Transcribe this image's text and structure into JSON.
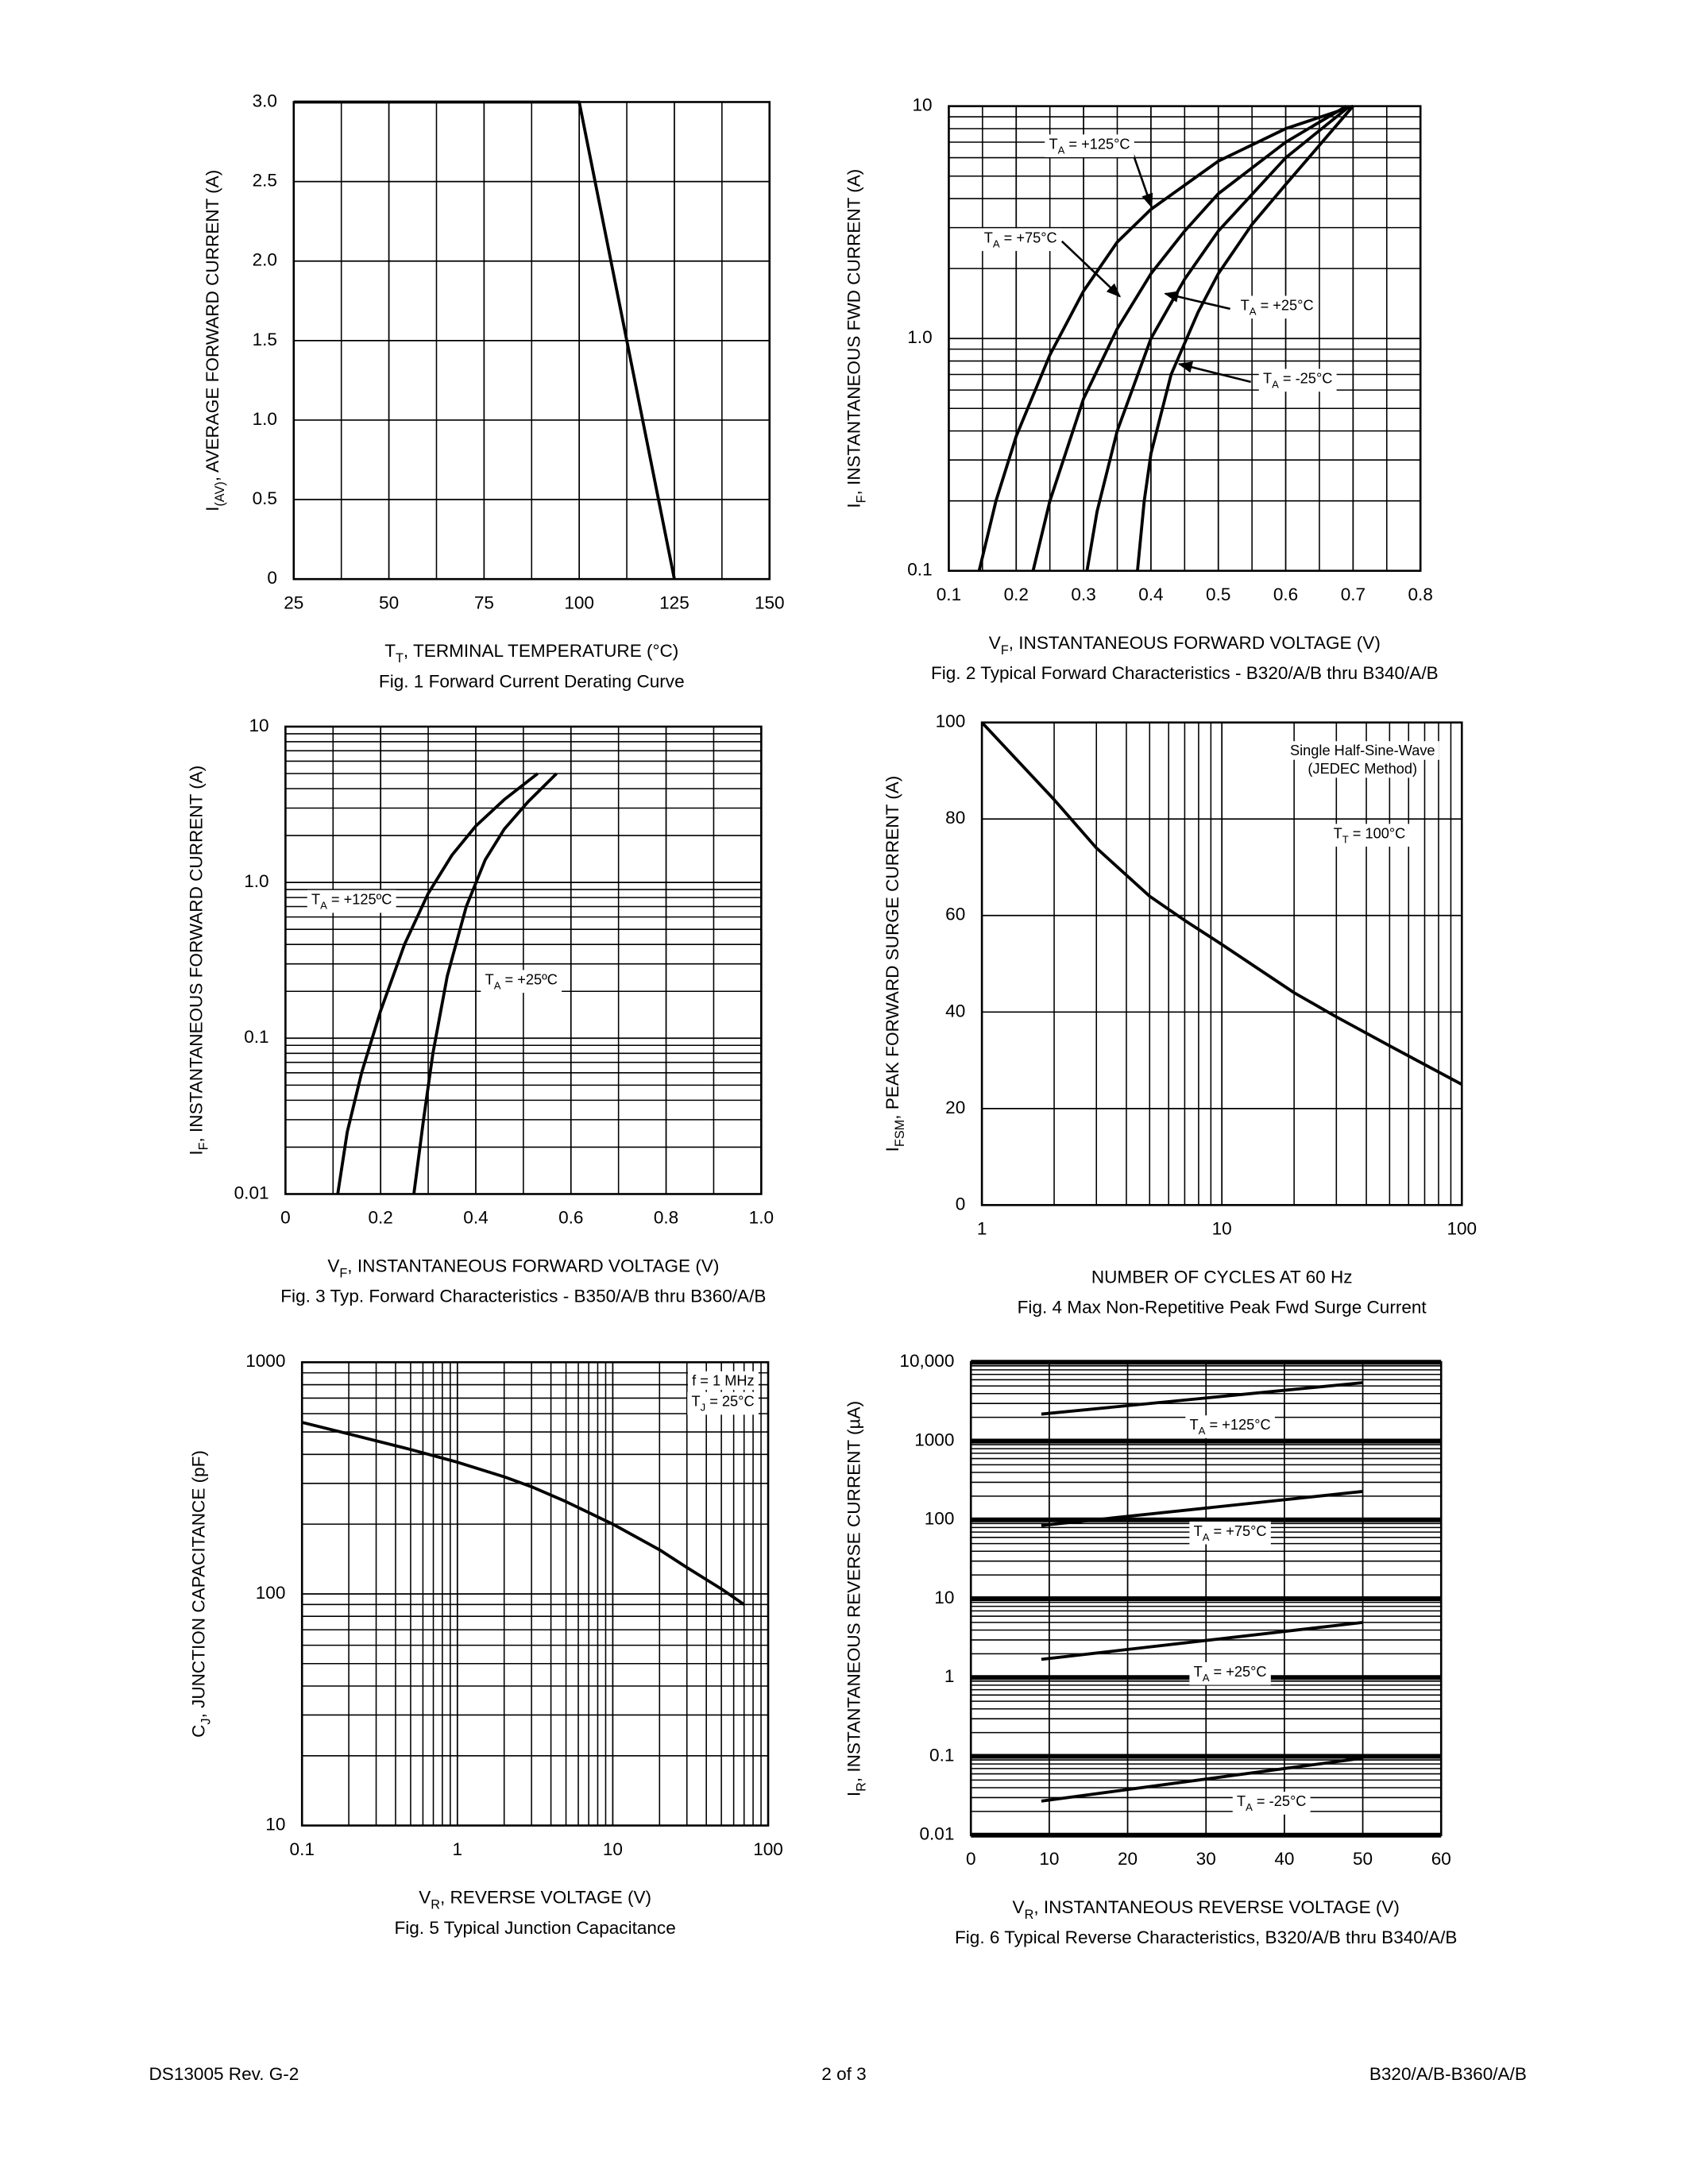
{
  "chart_data": [
    {
      "type": "line",
      "title": "Fig. 1  Forward Current Derating Curve",
      "xlabel": [
        "T",
        "T",
        ",  TERMINAL TEMPERATURE (°C)"
      ],
      "ylabel": [
        "I",
        "(AV)",
        ", AVERAGE FORWARD CURRENT (A)"
      ],
      "xlim": [
        25,
        150
      ],
      "ylim": [
        0,
        3
      ],
      "xlog": false,
      "ylog": false,
      "xticks": [
        25,
        50,
        75,
        100,
        125,
        150
      ],
      "yticks": [
        0,
        0.5,
        {
          "value": 1,
          "label": "1.0"
        },
        1.5,
        {
          "value": 2,
          "label": "2.0"
        },
        2.5,
        {
          "value": 3,
          "label": "3.0"
        }
      ],
      "xminor": [
        37.5,
        62.5,
        87.5,
        112.5,
        137.5
      ],
      "series": [
        {
          "color": "#000000",
          "x": [
            25,
            100,
            125
          ],
          "values": [
            3,
            3,
            0
          ]
        }
      ]
    },
    {
      "type": "line",
      "title": "Fig. 2  Typical Forward Characteristics - B320/A/B thru B340/A/B",
      "xlabel": [
        "V",
        "F",
        ", INSTANTANEOUS FORWARD VOLTAGE (V)"
      ],
      "ylabel": [
        "I",
        "F",
        ", INSTANTANEOUS FWD CURRENT (A)"
      ],
      "xlim": [
        0.1,
        0.8
      ],
      "ylim": [
        0.1,
        10
      ],
      "xlog": false,
      "ylog": true,
      "xticks": [
        0.1,
        0.2,
        0.3,
        0.4,
        0.5,
        0.6,
        0.7,
        0.8
      ],
      "yticks": [
        0.1,
        {
          "value": 1,
          "label": "1.0"
        },
        10
      ],
      "xminor": [
        0.15,
        0.25,
        0.35,
        0.45,
        0.55,
        0.65,
        0.75
      ],
      "series": [
        {
          "name": [
            "T",
            "A",
            " = +125°C"
          ],
          "color": "#000000",
          "x": [
            0.145,
            0.17,
            0.2,
            0.25,
            0.3,
            0.35,
            0.4,
            0.5,
            0.6,
            0.7
          ],
          "values": [
            0.1,
            0.2,
            0.38,
            0.85,
            1.6,
            2.6,
            3.6,
            5.8,
            8,
            10
          ]
        },
        {
          "name": [
            "T",
            "A",
            " = +75°C"
          ],
          "color": "#000000",
          "x": [
            0.225,
            0.25,
            0.3,
            0.35,
            0.4,
            0.45,
            0.5,
            0.6,
            0.69
          ],
          "values": [
            0.1,
            0.2,
            0.55,
            1.1,
            1.9,
            2.9,
            4.2,
            7,
            10
          ]
        },
        {
          "name": [
            "T",
            "A",
            " = +25°C"
          ],
          "color": "#000000",
          "x": [
            0.305,
            0.32,
            0.35,
            0.4,
            0.45,
            0.5,
            0.6,
            0.695
          ],
          "values": [
            0.1,
            0.18,
            0.4,
            1,
            1.8,
            2.9,
            6,
            10
          ]
        },
        {
          "name": [
            "T",
            "A",
            " = -25°C"
          ],
          "color": "#000000",
          "x": [
            0.38,
            0.39,
            0.4,
            0.43,
            0.47,
            0.5,
            0.55,
            0.6,
            0.7
          ],
          "values": [
            0.1,
            0.2,
            0.32,
            0.7,
            1.3,
            1.9,
            3.1,
            4.6,
            10
          ]
        }
      ]
    },
    {
      "type": "line",
      "title": "Fig. 3  Typ. Forward Characteristics - B350/A/B thru B360/A/B",
      "xlabel": [
        "V",
        "F",
        ", INSTANTANEOUS FORWARD VOLTAGE (V)"
      ],
      "ylabel": [
        "I",
        "F",
        ", INSTANTANEOUS FORWARD CURRENT (A)"
      ],
      "xlim": [
        0,
        1
      ],
      "ylim": [
        0.01,
        10
      ],
      "xlog": false,
      "ylog": true,
      "xticks": [
        0,
        0.2,
        0.4,
        0.6,
        0.8,
        {
          "value": 1,
          "label": "1.0"
        }
      ],
      "yticks": [
        0.01,
        0.1,
        {
          "value": 1,
          "label": "1.0"
        },
        10
      ],
      "xminor": [
        0.1,
        0.3,
        0.5,
        0.7,
        0.9
      ],
      "series": [
        {
          "name": [
            "T",
            "A",
            " = +125ºC"
          ],
          "color": "#000000",
          "x": [
            0.11,
            0.13,
            0.16,
            0.2,
            0.25,
            0.3,
            0.35,
            0.4,
            0.46,
            0.53
          ],
          "values": [
            0.01,
            0.025,
            0.06,
            0.15,
            0.4,
            0.85,
            1.5,
            2.3,
            3.4,
            5
          ]
        },
        {
          "name": [
            "T",
            "A",
            " = +25ºC"
          ],
          "color": "#000000",
          "x": [
            0.27,
            0.29,
            0.31,
            0.34,
            0.38,
            0.42,
            0.46,
            0.51,
            0.57
          ],
          "values": [
            0.01,
            0.03,
            0.08,
            0.25,
            0.7,
            1.4,
            2.2,
            3.3,
            5
          ]
        }
      ]
    },
    {
      "type": "line",
      "title": "Fig. 4  Max Non-Repetitive Peak Fwd Surge Current",
      "xlabel": [
        "NUMBER OF CYCLES AT 60 Hz"
      ],
      "ylabel": [
        "I",
        "FSM",
        ", PEAK FORWARD SURGE CURRENT (A)"
      ],
      "xlim": [
        1,
        100
      ],
      "ylim": [
        0,
        100
      ],
      "xlog": true,
      "ylog": false,
      "xticks": [
        1,
        10,
        100
      ],
      "yticks": [
        0,
        20,
        40,
        60,
        80,
        100
      ],
      "annotations": [
        [
          "Single Half-Sine-Wave"
        ],
        [
          "(JEDEC Method)"
        ],
        [
          "T",
          "T",
          " = 100°C"
        ]
      ],
      "series": [
        {
          "color": "#000000",
          "x": [
            1,
            2,
            3,
            5,
            7,
            10,
            20,
            30,
            50,
            100
          ],
          "values": [
            100,
            84,
            74,
            64,
            59,
            54,
            44,
            39,
            33,
            25
          ]
        }
      ]
    },
    {
      "type": "line",
      "title": "Fig. 5  Typical Junction Capacitance",
      "xlabel": [
        "V",
        "R",
        ", REVERSE VOLTAGE (V)"
      ],
      "ylabel": [
        "C",
        "J",
        ", JUNCTION CAPACITANCE (pF)"
      ],
      "xlim": [
        0.1,
        100
      ],
      "ylim": [
        10,
        1000
      ],
      "xlog": true,
      "ylog": true,
      "xticks": [
        0.1,
        1,
        10,
        100
      ],
      "yticks": [
        10,
        100,
        1000
      ],
      "annotations": [
        [
          "f = 1 MHz"
        ],
        [
          "T",
          "J",
          " = 25°C"
        ]
      ],
      "series": [
        {
          "color": "#000000",
          "x": [
            0.1,
            0.2,
            0.5,
            1,
            2,
            3,
            5,
            10,
            20,
            30,
            50,
            70
          ],
          "values": [
            550,
            490,
            420,
            370,
            320,
            290,
            250,
            200,
            155,
            130,
            105,
            90
          ]
        }
      ]
    },
    {
      "type": "line",
      "title": "Fig. 6  Typical Reverse Characteristics, B320/A/B thru B340/A/B",
      "xlabel": [
        "V",
        "R",
        ", INSTANTANEOUS REVERSE VOLTAGE (V)"
      ],
      "ylabel": [
        "I",
        "R",
        ", INSTANTANEOUS REVERSE CURRENT (µA)"
      ],
      "xlim": [
        0,
        60
      ],
      "ylim": [
        0.01,
        10000
      ],
      "xlog": false,
      "ylog": true,
      "bold_decades": true,
      "xticks": [
        0,
        10,
        20,
        30,
        40,
        50,
        60
      ],
      "yticks": [
        0.01,
        0.1,
        1,
        10,
        100,
        1000,
        {
          "value": 10000,
          "label": "10,000"
        }
      ],
      "series": [
        {
          "name": [
            "T",
            "A",
            " = +125°C"
          ],
          "color": "#000000",
          "x": [
            9,
            50
          ],
          "values": [
            2200,
            5500
          ]
        },
        {
          "name": [
            "T",
            "A",
            " = +75°C"
          ],
          "color": "#000000",
          "x": [
            9,
            50
          ],
          "values": [
            85,
            230
          ]
        },
        {
          "name": [
            "T",
            "A",
            " = +25°C"
          ],
          "color": "#000000",
          "x": [
            9,
            50
          ],
          "values": [
            1.7,
            5
          ]
        },
        {
          "name": [
            "T",
            "A",
            " = -25°C"
          ],
          "color": "#000000",
          "x": [
            9,
            50
          ],
          "values": [
            0.027,
            0.095
          ]
        }
      ]
    }
  ],
  "footer": {
    "left": "DS13005 Rev. G-2",
    "center": "2 of 3",
    "right": "B320/A/B-B360/A/B"
  }
}
